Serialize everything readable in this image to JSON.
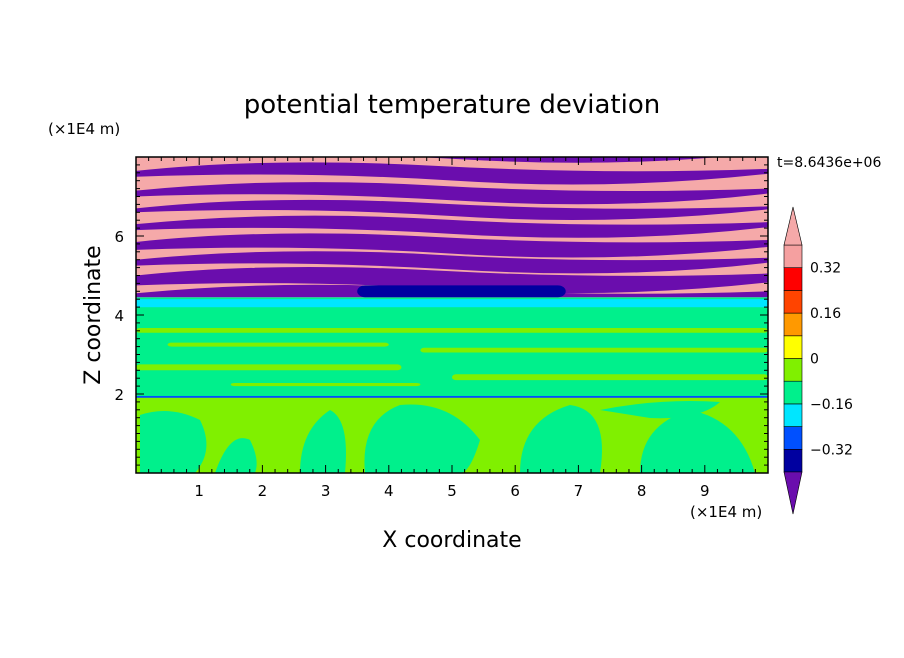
{
  "chart_data": {
    "type": "heatmap",
    "title": "potential temperature deviation",
    "xlabel": "X coordinate",
    "ylabel": "Z coordinate",
    "x_unit": "(×1E4 m)",
    "y_unit": "(×1E4 m)",
    "time_label": "t=8.6436e+06",
    "xlim": [
      0,
      10
    ],
    "ylim": [
      0,
      8
    ],
    "x_ticks": [
      1,
      2,
      3,
      4,
      5,
      6,
      7,
      8,
      9
    ],
    "x_tick_labels": [
      "1",
      "2",
      "3",
      "4",
      "5",
      "6",
      "7",
      "8",
      "9"
    ],
    "y_ticks": [
      2,
      4,
      6
    ],
    "y_tick_labels": [
      "2",
      "4",
      "6"
    ],
    "colorbar": {
      "levels": [
        -0.4,
        -0.32,
        -0.24,
        -0.16,
        -0.08,
        0,
        0.08,
        0.16,
        0.24,
        0.32,
        0.4
      ],
      "colors": [
        "#0000a0",
        "#0050ff",
        "#00e6ff",
        "#00f08c",
        "#80f000",
        "#ffff00",
        "#ff9900",
        "#ff4400",
        "#ff0000",
        "#f5a0a0"
      ],
      "under_color": "#6a0dad",
      "over_color": "#f5a9a9",
      "tick_values": [
        0.32,
        0.16,
        0,
        -0.16,
        -0.32
      ],
      "tick_labels": [
        "0.32",
        "0.16",
        "0",
        "−0.16",
        "−0.32"
      ]
    },
    "layers": [
      {
        "z_range": [
          0,
          1.95
        ],
        "description_value": 0.04
      },
      {
        "z_range": [
          1.95,
          4.45
        ],
        "description_value": -0.04
      },
      {
        "z_range": [
          4.45,
          8
        ],
        "description_value": 0.5
      }
    ]
  }
}
